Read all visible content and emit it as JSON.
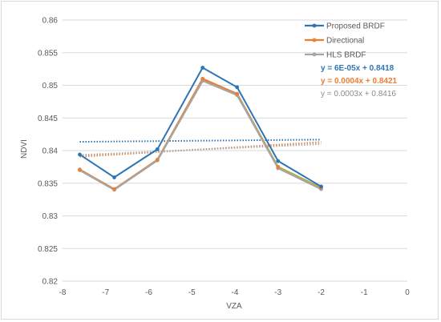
{
  "chart_data": {
    "type": "line",
    "title": "",
    "xlabel": "VZA",
    "ylabel": "NDVI",
    "xlim": [
      -8,
      0
    ],
    "ylim": [
      0.82,
      0.86
    ],
    "xticks": [
      "-8",
      "-7",
      "-6",
      "-5",
      "-4",
      "-3",
      "-2",
      "-1",
      "0"
    ],
    "yticks": [
      "0.82",
      "0.825",
      "0.83",
      "0.835",
      "0.84",
      "0.845",
      "0.85",
      "0.855",
      "0.86"
    ],
    "grid": "horizontal",
    "legend_position": "top-right",
    "x": [
      -7.6,
      -6.8,
      -5.8,
      -4.75,
      -3.95,
      -3.0,
      -2.0
    ],
    "series": [
      {
        "name": "Proposed BRDF",
        "color": "#2e75b6",
        "values": [
          0.8394,
          0.8359,
          0.8402,
          0.8527,
          0.8497,
          0.8384,
          0.8345
        ],
        "trendline": {
          "equation": "y = 6E-05x + 0.8418",
          "slope": 6e-05,
          "intercept": 0.8418,
          "color": "#2e75b6"
        }
      },
      {
        "name": "Directional",
        "color": "#ed7d31",
        "values": [
          0.8371,
          0.8341,
          0.8386,
          0.851,
          0.8487,
          0.8375,
          0.8343
        ],
        "trendline": {
          "equation": "y = 0.0004x + 0.8421",
          "slope": 0.0004,
          "intercept": 0.8421,
          "color": "#ed7d31"
        }
      },
      {
        "name": "HLS BRDF",
        "color": "#a5a5a5",
        "values": [
          0.837,
          0.834,
          0.8385,
          0.8507,
          0.8485,
          0.8373,
          0.8341
        ],
        "trendline": {
          "equation": "y = 0.0003x + 0.8416",
          "slope": 0.0003,
          "intercept": 0.8416,
          "color": "#a5a5a5"
        }
      }
    ],
    "extra_line": {
      "color": "#b5b13a",
      "values": [
        0.837,
        0.834,
        0.8385,
        0.8507,
        0.8485,
        0.8375,
        0.8343
      ]
    }
  }
}
